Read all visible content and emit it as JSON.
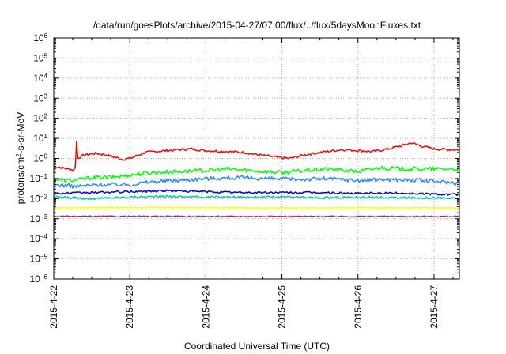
{
  "chart_data": {
    "type": "line",
    "title": "/data/run/goesPlots/archive/2015-04-27/07:00/flux/../flux/5daysMoonFluxes.txt",
    "xlabel": "Coordinated Universal Time (UTC)",
    "ylabel_parts": [
      "protons/cm",
      "2",
      "-s-sr-MeV"
    ],
    "y_scale": "log",
    "y_tick_exponents": [
      -6,
      -5,
      -4,
      -3,
      -2,
      -1,
      0,
      1,
      2,
      3,
      4,
      5,
      6
    ],
    "y_tick_base": "10",
    "x_range": [
      "2015-04-22",
      "2015-04-27 08:00"
    ],
    "x_ticks": [
      "2015-4-22",
      "2015-4-23",
      "2015-4-24",
      "2015-4-25",
      "2015-4-26",
      "2015-4-27"
    ],
    "grid": true,
    "series": [
      {
        "color": "#ff0000",
        "profile": [
          {
            "d": 0.0,
            "v": 0.4
          },
          {
            "d": 0.1,
            "v": 0.35
          },
          {
            "d": 0.18,
            "v": 0.3
          },
          {
            "d": 0.24,
            "v": 0.28
          },
          {
            "d": 0.28,
            "v": 0.25
          },
          {
            "d": 0.3,
            "v": 7.0
          },
          {
            "d": 0.31,
            "v": 1.0
          },
          {
            "d": 0.4,
            "v": 1.5
          },
          {
            "d": 0.55,
            "v": 1.8
          },
          {
            "d": 0.7,
            "v": 1.5
          },
          {
            "d": 0.9,
            "v": 0.9
          },
          {
            "d": 1.0,
            "v": 1.0
          },
          {
            "d": 1.2,
            "v": 2.0
          },
          {
            "d": 1.5,
            "v": 2.5
          },
          {
            "d": 1.8,
            "v": 3.0
          },
          {
            "d": 2.0,
            "v": 2.5
          },
          {
            "d": 2.3,
            "v": 2.2
          },
          {
            "d": 2.5,
            "v": 2.0
          },
          {
            "d": 2.7,
            "v": 1.5
          },
          {
            "d": 2.9,
            "v": 1.2
          },
          {
            "d": 3.1,
            "v": 1.0
          },
          {
            "d": 3.3,
            "v": 1.5
          },
          {
            "d": 3.5,
            "v": 2.0
          },
          {
            "d": 3.8,
            "v": 2.8
          },
          {
            "d": 4.0,
            "v": 2.5
          },
          {
            "d": 4.2,
            "v": 2.2
          },
          {
            "d": 4.4,
            "v": 3.0
          },
          {
            "d": 4.6,
            "v": 4.5
          },
          {
            "d": 4.7,
            "v": 6.0
          },
          {
            "d": 4.85,
            "v": 4.0
          },
          {
            "d": 5.0,
            "v": 3.0
          },
          {
            "d": 5.15,
            "v": 2.8
          },
          {
            "d": 5.33,
            "v": 2.7
          }
        ]
      },
      {
        "color": "#00ff00",
        "profile": [
          {
            "d": 0.0,
            "v": 0.09
          },
          {
            "d": 0.2,
            "v": 0.08
          },
          {
            "d": 0.35,
            "v": 0.09
          },
          {
            "d": 0.5,
            "v": 0.11
          },
          {
            "d": 0.8,
            "v": 0.12
          },
          {
            "d": 1.0,
            "v": 0.15
          },
          {
            "d": 1.3,
            "v": 0.2
          },
          {
            "d": 1.6,
            "v": 0.22
          },
          {
            "d": 2.0,
            "v": 0.25
          },
          {
            "d": 2.3,
            "v": 0.3
          },
          {
            "d": 2.6,
            "v": 0.25
          },
          {
            "d": 3.0,
            "v": 0.2
          },
          {
            "d": 3.3,
            "v": 0.25
          },
          {
            "d": 3.6,
            "v": 0.3
          },
          {
            "d": 4.0,
            "v": 0.22
          },
          {
            "d": 4.3,
            "v": 0.35
          },
          {
            "d": 4.6,
            "v": 0.3
          },
          {
            "d": 5.0,
            "v": 0.3
          },
          {
            "d": 5.33,
            "v": 0.3
          }
        ]
      },
      {
        "color": "#2288ff",
        "profile": [
          {
            "d": 0.0,
            "v": 0.05
          },
          {
            "d": 0.3,
            "v": 0.04
          },
          {
            "d": 0.6,
            "v": 0.05
          },
          {
            "d": 1.0,
            "v": 0.05
          },
          {
            "d": 1.3,
            "v": 0.07
          },
          {
            "d": 1.6,
            "v": 0.08
          },
          {
            "d": 2.0,
            "v": 0.1
          },
          {
            "d": 2.4,
            "v": 0.11
          },
          {
            "d": 2.8,
            "v": 0.1
          },
          {
            "d": 3.2,
            "v": 0.09
          },
          {
            "d": 3.6,
            "v": 0.1
          },
          {
            "d": 4.0,
            "v": 0.08
          },
          {
            "d": 4.4,
            "v": 0.09
          },
          {
            "d": 4.8,
            "v": 0.08
          },
          {
            "d": 5.33,
            "v": 0.06
          }
        ]
      },
      {
        "color": "#0000dd",
        "profile": [
          {
            "d": 0.0,
            "v": 0.018
          },
          {
            "d": 0.5,
            "v": 0.02
          },
          {
            "d": 1.0,
            "v": 0.022
          },
          {
            "d": 1.5,
            "v": 0.025
          },
          {
            "d": 2.0,
            "v": 0.022
          },
          {
            "d": 2.5,
            "v": 0.02
          },
          {
            "d": 3.0,
            "v": 0.02
          },
          {
            "d": 3.5,
            "v": 0.02
          },
          {
            "d": 4.0,
            "v": 0.018
          },
          {
            "d": 4.5,
            "v": 0.019
          },
          {
            "d": 5.0,
            "v": 0.017
          },
          {
            "d": 5.33,
            "v": 0.016
          }
        ]
      },
      {
        "color": "#00ccaa",
        "profile": [
          {
            "d": 0.0,
            "v": 0.012
          },
          {
            "d": 0.5,
            "v": 0.01
          },
          {
            "d": 1.0,
            "v": 0.012
          },
          {
            "d": 1.5,
            "v": 0.013
          },
          {
            "d": 2.0,
            "v": 0.012
          },
          {
            "d": 2.5,
            "v": 0.012
          },
          {
            "d": 3.0,
            "v": 0.012
          },
          {
            "d": 3.5,
            "v": 0.011
          },
          {
            "d": 4.0,
            "v": 0.012
          },
          {
            "d": 4.5,
            "v": 0.011
          },
          {
            "d": 5.0,
            "v": 0.011
          },
          {
            "d": 5.33,
            "v": 0.01
          }
        ]
      },
      {
        "color": "#ffff00",
        "profile": [
          {
            "d": 0.0,
            "v": 0.0035
          },
          {
            "d": 1.0,
            "v": 0.0037
          },
          {
            "d": 2.0,
            "v": 0.0036
          },
          {
            "d": 3.0,
            "v": 0.0035
          },
          {
            "d": 4.0,
            "v": 0.0036
          },
          {
            "d": 5.33,
            "v": 0.0035
          }
        ]
      },
      {
        "color": "#993366",
        "profile": [
          {
            "d": 0.0,
            "v": 0.0013
          },
          {
            "d": 1.0,
            "v": 0.0013
          },
          {
            "d": 2.0,
            "v": 0.0013
          },
          {
            "d": 3.0,
            "v": 0.0013
          },
          {
            "d": 4.0,
            "v": 0.0013
          },
          {
            "d": 5.33,
            "v": 0.0013
          }
        ]
      }
    ]
  }
}
